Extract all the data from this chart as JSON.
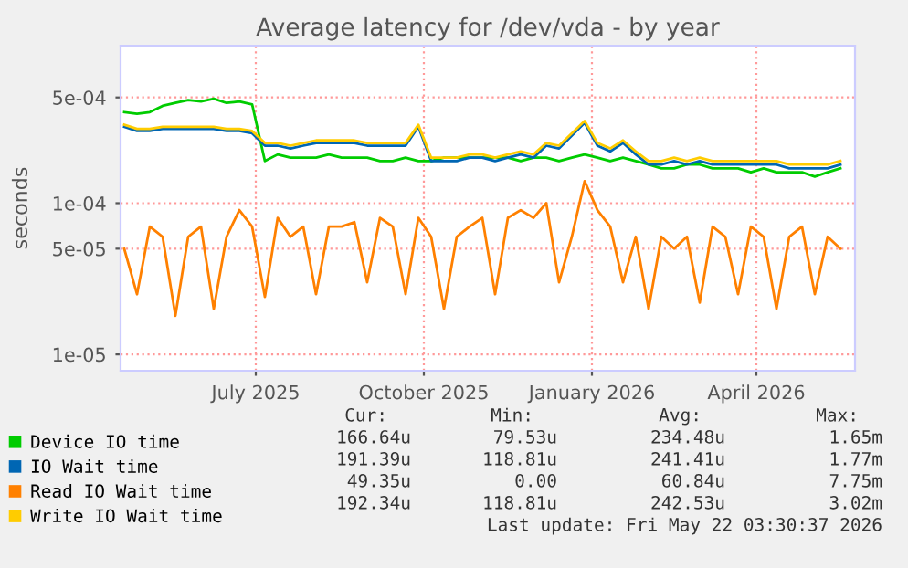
{
  "chart_data": {
    "type": "line",
    "title": "Average latency for /dev/vda - by year",
    "ylabel": "seconds",
    "log": "y",
    "ylim": [
      7.8e-06,
      0.0011
    ],
    "yticks": [
      {
        "value": 1e-05,
        "label": "1e-05"
      },
      {
        "value": 5e-05,
        "label": "5e-05"
      },
      {
        "value": 0.0001,
        "label": "1e-04"
      },
      {
        "value": 0.0005,
        "label": "5e-04"
      }
    ],
    "xlim": [
      "2025-04-18",
      "2026-05-25"
    ],
    "xticks": [
      {
        "value": "2025-07-01",
        "label": "July 2025"
      },
      {
        "value": "2025-10-01",
        "label": "October 2025"
      },
      {
        "value": "2026-01-01",
        "label": "January 2026"
      },
      {
        "value": "2026-04-01",
        "label": "April 2026"
      }
    ],
    "grid": true,
    "legend": "bottom",
    "marker": "none",
    "line_style": "solid",
    "x": [
      "2025-04-20",
      "2025-04-27",
      "2025-05-04",
      "2025-05-11",
      "2025-05-18",
      "2025-05-25",
      "2025-06-01",
      "2025-06-08",
      "2025-06-15",
      "2025-06-22",
      "2025-06-29",
      "2025-07-06",
      "2025-07-13",
      "2025-07-20",
      "2025-07-27",
      "2025-08-03",
      "2025-08-10",
      "2025-08-17",
      "2025-08-24",
      "2025-08-31",
      "2025-09-07",
      "2025-09-14",
      "2025-09-21",
      "2025-09-28",
      "2025-10-05",
      "2025-10-12",
      "2025-10-19",
      "2025-10-26",
      "2025-11-02",
      "2025-11-09",
      "2025-11-16",
      "2025-11-23",
      "2025-11-30",
      "2025-12-07",
      "2025-12-14",
      "2025-12-21",
      "2025-12-28",
      "2026-01-04",
      "2026-01-11",
      "2026-01-18",
      "2026-01-25",
      "2026-02-01",
      "2026-02-08",
      "2026-02-15",
      "2026-02-22",
      "2026-03-01",
      "2026-03-08",
      "2026-03-15",
      "2026-03-22",
      "2026-03-29",
      "2026-04-05",
      "2026-04-12",
      "2026-04-19",
      "2026-04-26",
      "2026-05-03",
      "2026-05-10",
      "2026-05-17"
    ],
    "series": [
      {
        "name": "Device IO time",
        "color": "#00cc00",
        "values": [
          0.0004,
          0.00039,
          0.0004,
          0.00044,
          0.00046,
          0.00048,
          0.00047,
          0.00049,
          0.00046,
          0.00047,
          0.00045,
          0.00019,
          0.00021,
          0.0002,
          0.0002,
          0.0002,
          0.00021,
          0.0002,
          0.0002,
          0.0002,
          0.00019,
          0.00019,
          0.0002,
          0.00019,
          0.00019,
          0.0002,
          0.0002,
          0.0002,
          0.0002,
          0.0002,
          0.0002,
          0.00019,
          0.0002,
          0.0002,
          0.00019,
          0.0002,
          0.00021,
          0.0002,
          0.00019,
          0.0002,
          0.00019,
          0.00018,
          0.00017,
          0.00017,
          0.00018,
          0.00018,
          0.00017,
          0.00017,
          0.00017,
          0.00016,
          0.00017,
          0.00016,
          0.00016,
          0.00016,
          0.00015,
          0.00016,
          0.00017
        ]
      },
      {
        "name": "IO Wait time",
        "color": "#0066b3",
        "values": [
          0.00032,
          0.0003,
          0.0003,
          0.00031,
          0.00031,
          0.00031,
          0.00031,
          0.00031,
          0.0003,
          0.0003,
          0.00029,
          0.00024,
          0.00024,
          0.00023,
          0.00024,
          0.00025,
          0.00025,
          0.00025,
          0.00025,
          0.00024,
          0.00024,
          0.00024,
          0.00024,
          0.00032,
          0.00019,
          0.00019,
          0.00019,
          0.0002,
          0.0002,
          0.00019,
          0.0002,
          0.00021,
          0.0002,
          0.00024,
          0.00023,
          0.00028,
          0.00034,
          0.00024,
          0.00022,
          0.00025,
          0.00021,
          0.00018,
          0.00018,
          0.00019,
          0.00018,
          0.00019,
          0.00018,
          0.00018,
          0.00018,
          0.00018,
          0.00018,
          0.00018,
          0.00017,
          0.00017,
          0.00017,
          0.00017,
          0.00018
        ]
      },
      {
        "name": "Read IO Wait time",
        "color": "#ff8000",
        "values": [
          5e-05,
          2.5e-05,
          7e-05,
          6e-05,
          1.8e-05,
          6e-05,
          7e-05,
          2e-05,
          6e-05,
          9e-05,
          7e-05,
          2.4e-05,
          8e-05,
          6e-05,
          7e-05,
          2.5e-05,
          7e-05,
          7e-05,
          7.5e-05,
          3e-05,
          8e-05,
          7e-05,
          2.5e-05,
          8e-05,
          6e-05,
          2e-05,
          6e-05,
          7e-05,
          8e-05,
          2.5e-05,
          8e-05,
          9e-05,
          8e-05,
          0.0001,
          3e-05,
          6e-05,
          0.00014,
          9e-05,
          7e-05,
          3e-05,
          6e-05,
          2e-05,
          6e-05,
          5e-05,
          6e-05,
          2.2e-05,
          7e-05,
          6e-05,
          2.5e-05,
          7e-05,
          6e-05,
          2e-05,
          6e-05,
          7e-05,
          2.5e-05,
          6e-05,
          5e-05
        ]
      },
      {
        "name": "Write IO Wait time",
        "color": "#ffcc00",
        "values": [
          0.00033,
          0.00031,
          0.00031,
          0.00032,
          0.00032,
          0.00032,
          0.00032,
          0.00032,
          0.00031,
          0.00031,
          0.0003,
          0.00025,
          0.00025,
          0.00024,
          0.00025,
          0.00026,
          0.00026,
          0.00026,
          0.00026,
          0.00025,
          0.00025,
          0.00025,
          0.00025,
          0.00033,
          0.0002,
          0.0002,
          0.0002,
          0.00021,
          0.00021,
          0.0002,
          0.00021,
          0.00022,
          0.00021,
          0.00025,
          0.00024,
          0.00029,
          0.00035,
          0.00025,
          0.00023,
          0.00026,
          0.00022,
          0.00019,
          0.00019,
          0.0002,
          0.00019,
          0.0002,
          0.00019,
          0.00019,
          0.00019,
          0.00019,
          0.00019,
          0.00019,
          0.00018,
          0.00018,
          0.00018,
          0.00018,
          0.00019
        ]
      }
    ],
    "annotations": [
      "Cur:",
      "Min:",
      "Avg:",
      "Max:",
      "166.64u",
      "79.53u",
      "234.48u",
      "1.65m",
      "191.39u",
      "118.81u",
      "241.41u",
      "1.77m",
      "49.35u",
      "0.00",
      "60.84u",
      "7.75m",
      "192.34u",
      "118.81u",
      "242.53u",
      "3.02m",
      "Last update: Fri May 22 03:30:37 2026"
    ]
  }
}
